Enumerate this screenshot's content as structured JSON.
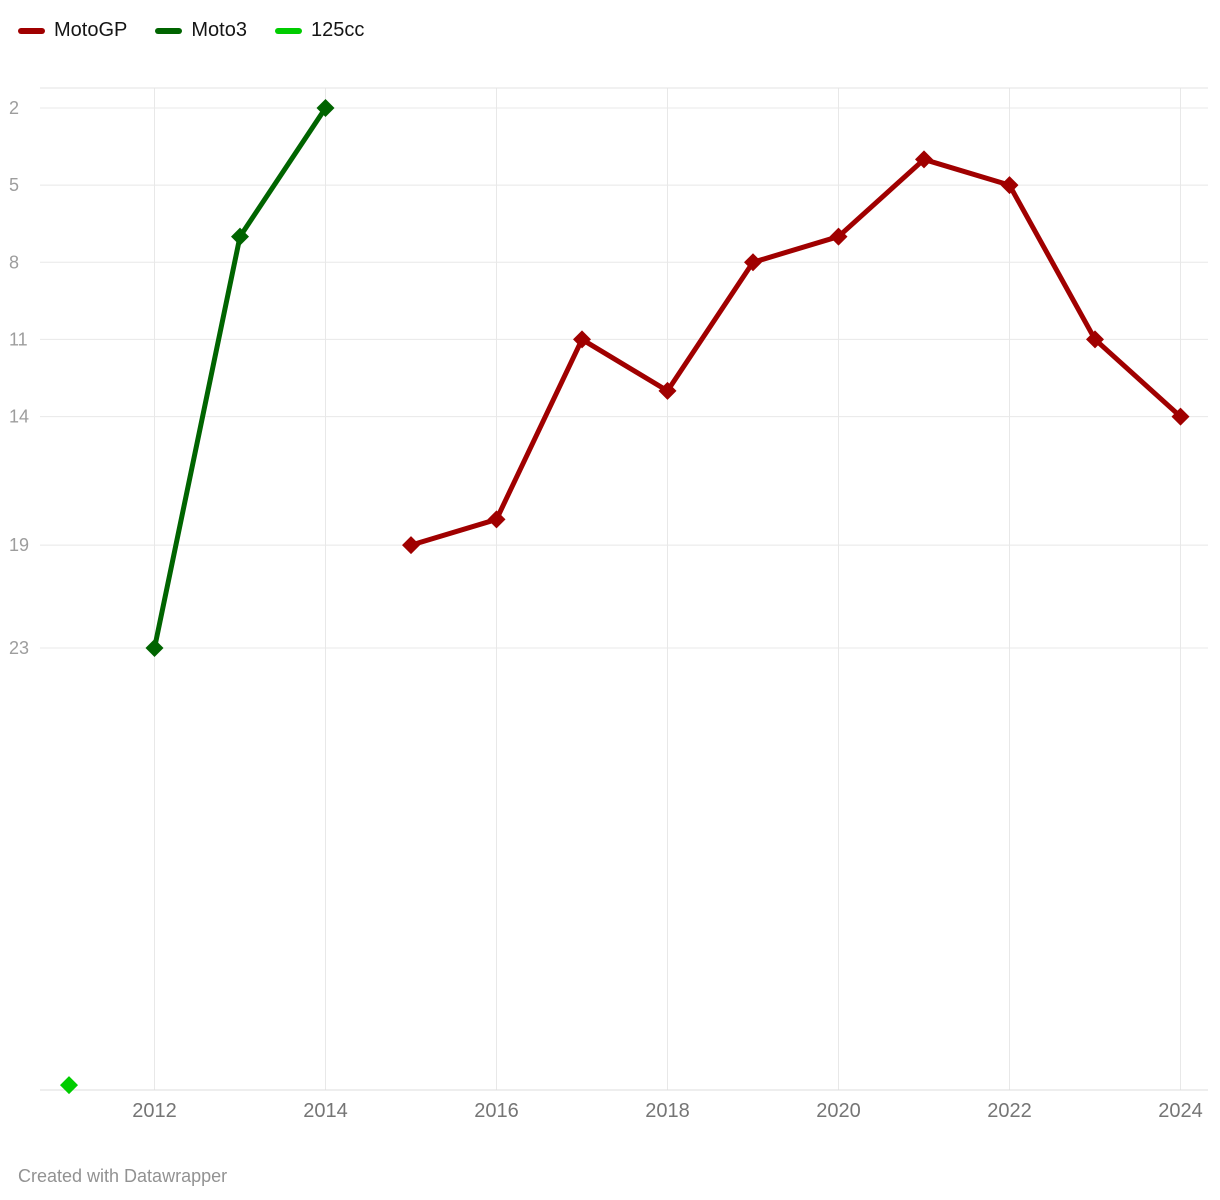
{
  "legend": {
    "items": [
      {
        "label": "MotoGP",
        "color": "#a00000"
      },
      {
        "label": "Moto3",
        "color": "#006400"
      },
      {
        "label": "125cc",
        "color": "#00cc00"
      }
    ]
  },
  "footer": {
    "credit": "Created with Datawrapper"
  },
  "chart_data": {
    "type": "line",
    "title": "",
    "xlabel": "",
    "ylabel": "",
    "y_axis_inverted": true,
    "grid": true,
    "legend_position": "top-left",
    "x_ticks": [
      2012,
      2014,
      2016,
      2018,
      2020,
      2022,
      2024
    ],
    "y_ticks": [
      2,
      5,
      8,
      11,
      14,
      19,
      23
    ],
    "x_range": [
      2010.66,
      2024.33
    ],
    "y_range": [
      1.2,
      40.2
    ],
    "marker": "diamond",
    "series": [
      {
        "name": "MotoGP",
        "color": "#a00000",
        "points": [
          [
            2015,
            19
          ],
          [
            2016,
            18
          ],
          [
            2017,
            11
          ],
          [
            2018,
            13
          ],
          [
            2019,
            8
          ],
          [
            2020,
            7
          ],
          [
            2021,
            4
          ],
          [
            2022,
            5
          ],
          [
            2023,
            11
          ],
          [
            2024,
            14
          ]
        ]
      },
      {
        "name": "Moto3",
        "color": "#006400",
        "points": [
          [
            2012,
            23
          ],
          [
            2013,
            7
          ],
          [
            2014,
            2
          ]
        ]
      },
      {
        "name": "125cc",
        "color": "#00cc00",
        "points": [
          [
            2011,
            40
          ]
        ]
      }
    ]
  }
}
